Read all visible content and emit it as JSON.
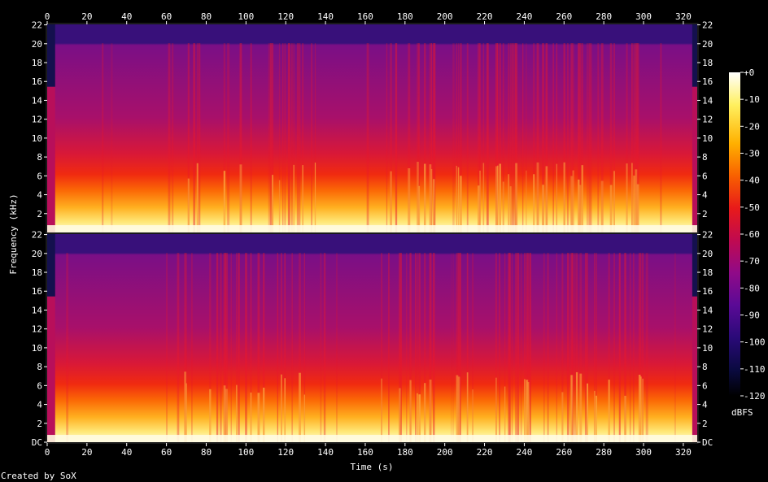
{
  "chart_data": {
    "type": "heatmap",
    "title": "",
    "xlabel": "Time (s)",
    "ylabel": "Frequency (kHz)",
    "xlim": [
      0,
      327
    ],
    "x_ticks": [
      0,
      20,
      40,
      60,
      80,
      100,
      120,
      140,
      160,
      180,
      200,
      220,
      240,
      260,
      280,
      300,
      320
    ],
    "ylim": [
      0,
      22.05
    ],
    "y_ticks_top": [
      "22",
      "20",
      "18",
      "16",
      "14",
      "12",
      "10",
      "8",
      "6",
      "4",
      "2"
    ],
    "y_ticks_bottom": [
      "22",
      "20",
      "18",
      "16",
      "14",
      "12",
      "10",
      "8",
      "6",
      "4",
      "2",
      "DC"
    ],
    "y_tick_values": [
      22,
      20,
      18,
      16,
      14,
      12,
      10,
      8,
      6,
      4,
      2,
      0
    ],
    "channels": 2,
    "colorbar": {
      "label": "dBFS",
      "ticks": [
        "+0",
        "-10",
        "-20",
        "-30",
        "-40",
        "-50",
        "-60",
        "-70",
        "-80",
        "-90",
        "-100",
        "-110",
        "-120"
      ],
      "range": [
        -120,
        0
      ]
    },
    "legend_placement": "right",
    "grid": false
  },
  "credit": "Created by SoX",
  "colors": {
    "background": "#000000",
    "text": "#ffffff",
    "colormap": [
      "#000000",
      "#0a0a40",
      "#2a0a7a",
      "#5a0a96",
      "#8c0a8c",
      "#c00a5a",
      "#e01a1a",
      "#f85a00",
      "#ffa000",
      "#ffe040",
      "#ffffff"
    ]
  }
}
